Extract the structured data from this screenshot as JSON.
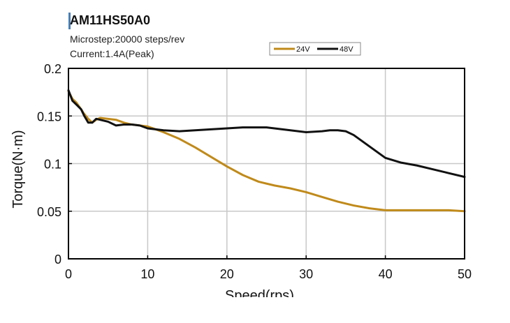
{
  "chart_data": {
    "type": "line",
    "title": "AM11HS50A0",
    "subtitle_lines": [
      "Microstep:20000 steps/rev",
      "Current:1.4A(Peak)"
    ],
    "xlabel": "Speed(rps)",
    "ylabel": "Torque(N·m)",
    "xlim": [
      0,
      50
    ],
    "ylim": [
      0,
      0.2
    ],
    "x_ticks": [
      0,
      10,
      20,
      30,
      40,
      50
    ],
    "y_ticks": [
      0,
      0.05,
      0.1,
      0.15,
      0.2
    ],
    "x_tick_labels": [
      "0",
      "10",
      "20",
      "30",
      "40",
      "50"
    ],
    "y_tick_labels": [
      "0",
      "0.05",
      "0.1",
      "0.15",
      "0.2"
    ],
    "grid": true,
    "legend_position": "top-right",
    "series": [
      {
        "name": "24V",
        "color": "#c08a1a",
        "x": [
          0,
          0.5,
          1,
          1.6,
          2,
          2.5,
          3,
          3.5,
          4,
          5,
          6,
          7,
          8,
          9,
          10,
          12,
          14,
          16,
          18,
          20,
          22,
          24,
          26,
          28,
          30,
          32,
          34,
          36,
          38,
          40,
          42,
          44,
          46,
          48,
          50
        ],
        "y": [
          0.176,
          0.168,
          0.164,
          0.157,
          0.152,
          0.147,
          0.143,
          0.146,
          0.148,
          0.147,
          0.146,
          0.143,
          0.141,
          0.14,
          0.139,
          0.133,
          0.126,
          0.117,
          0.107,
          0.097,
          0.088,
          0.081,
          0.077,
          0.074,
          0.07,
          0.065,
          0.06,
          0.056,
          0.053,
          0.051,
          0.051,
          0.051,
          0.051,
          0.051,
          0.05
        ]
      },
      {
        "name": "48V",
        "color": "#111111",
        "x": [
          0,
          0.5,
          1,
          1.6,
          2,
          2.5,
          3,
          3.5,
          4,
          5,
          6,
          7,
          8,
          9,
          10,
          12,
          14,
          16,
          18,
          20,
          22,
          24,
          25,
          26,
          28,
          30,
          32,
          33,
          34,
          35,
          36,
          38,
          40,
          42,
          44,
          46,
          48,
          50
        ],
        "y": [
          0.177,
          0.166,
          0.162,
          0.157,
          0.15,
          0.143,
          0.143,
          0.147,
          0.146,
          0.144,
          0.14,
          0.141,
          0.141,
          0.14,
          0.137,
          0.135,
          0.134,
          0.135,
          0.136,
          0.137,
          0.138,
          0.138,
          0.138,
          0.137,
          0.135,
          0.133,
          0.134,
          0.135,
          0.135,
          0.134,
          0.13,
          0.118,
          0.106,
          0.101,
          0.098,
          0.094,
          0.09,
          0.086
        ]
      }
    ]
  }
}
